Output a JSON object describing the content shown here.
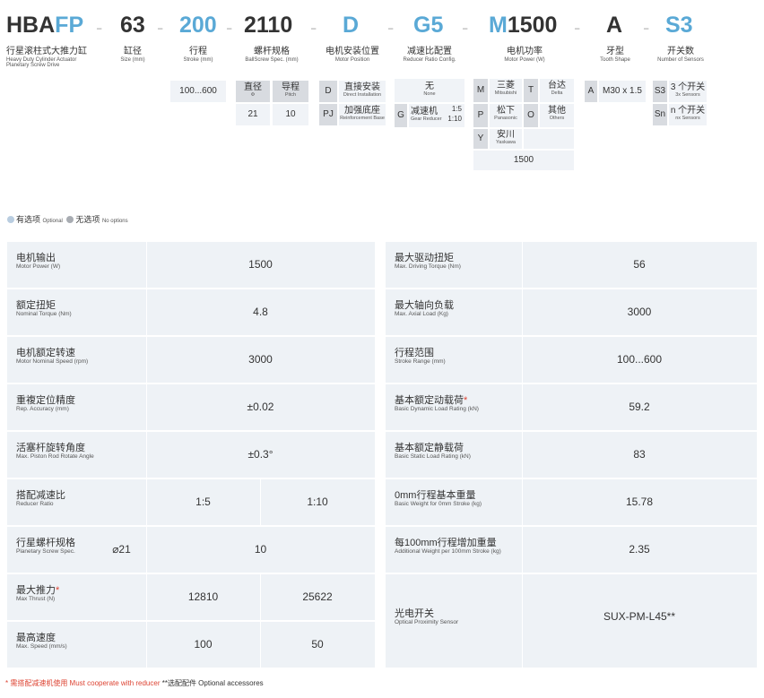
{
  "header": {
    "codes": [
      {
        "plain": "HBA",
        "colored": "FP",
        "zh": "行星滚柱式大推力缸",
        "en1": "Heavy Duty Cylinder Actuator",
        "en2": "Planetary Screw Drive"
      },
      {
        "plain": "63",
        "colored": "",
        "zh": "缸径",
        "en1": "Size (mm)"
      },
      {
        "plain": "",
        "colored": "200",
        "zh": "行程",
        "en1": "Stroke (mm)"
      },
      {
        "plain": "2110",
        "colored": "",
        "zh": "螺杆规格",
        "en1": "BallScrew Spec. (mm)"
      },
      {
        "plain": "",
        "colored": "D",
        "zh": "电机安装位置",
        "en1": "Motor Position"
      },
      {
        "plain": "",
        "colored": "G5",
        "zh": "减速比配置",
        "en1": "Reducer Ratio Config."
      },
      {
        "plain": "1500",
        "colored": "M",
        "zh": "电机功率",
        "en1": "Motor Power (W)"
      },
      {
        "plain": "A",
        "colored": "",
        "zh": "牙型",
        "en1": "Tooth Shape"
      },
      {
        "plain": "",
        "colored": "S3",
        "zh": "开关数",
        "en1": "Number of Sensors"
      }
    ],
    "dash": "-"
  },
  "options": {
    "stroke": "100...600",
    "screw": {
      "h1": "直径",
      "h1s": "Φ",
      "h2": "导程",
      "h2s": "Pitch",
      "v1": "21",
      "v2": "10"
    },
    "position": [
      {
        "code": "D",
        "zh": "直接安装",
        "en": "Direct Installation"
      },
      {
        "code": "PJ",
        "zh": "加强底座",
        "en": "Reinforcement Base"
      }
    ],
    "reducer": {
      "none_zh": "无",
      "none_en": "None",
      "code": "G",
      "zh": "减速机",
      "en": "Gear Reducer",
      "r1": "1:5",
      "r2": "1:10"
    },
    "motor": [
      {
        "code": "M",
        "zh": "三菱",
        "en": "Mitsubishi"
      },
      {
        "code": "P",
        "zh": "松下",
        "en": "Panasonic"
      },
      {
        "code": "Y",
        "zh": "安川",
        "en": "Yaskawa"
      },
      {
        "code": "T",
        "zh": "台达",
        "en": "Delta"
      },
      {
        "code": "O",
        "zh": "其他",
        "en": "Others"
      }
    ],
    "motor_power": "1500",
    "thread": {
      "code": "A",
      "val": "M30 x 1.5"
    },
    "sensors": [
      {
        "code": "S3",
        "zh": "3 个开关",
        "en": "3x Sensors"
      },
      {
        "code": "Sn",
        "zh": "n 个开关",
        "en": "nx Sensors"
      }
    ]
  },
  "legend": {
    "opt_zh": "有选项",
    "opt_en": "Optional",
    "no_zh": "无选项",
    "no_en": "No options"
  },
  "left_table": [
    {
      "zh": "电机输出",
      "en": "Motor Power (W)",
      "v": [
        "1500"
      ]
    },
    {
      "zh": "额定扭矩",
      "en": "Nominal Torque (Nm)",
      "v": [
        "4.8"
      ]
    },
    {
      "zh": "电机额定转速",
      "en": "Motor Nominal Speed (rpm)",
      "v": [
        "3000"
      ]
    },
    {
      "zh": "重複定位精度",
      "en": "Rep. Accuracy (mm)",
      "v": [
        "±0.02"
      ]
    },
    {
      "zh": "活塞杆旋转角度",
      "en": "Max. Piston Rod Rotate Angle",
      "v": [
        "±0.3°"
      ]
    },
    {
      "zh": "搭配减速比",
      "en": "Reducer Ratio",
      "v": [
        "1:5",
        "1:10"
      ]
    },
    {
      "zh": "行星螺杆规格",
      "en": "Planetary Screw Spec.",
      "pre": "⌀21",
      "v": [
        "10"
      ]
    },
    {
      "zh": "最大推力",
      "star": "*",
      "en": "Max Thrust (N)",
      "v": [
        "12810",
        "25622"
      ]
    },
    {
      "zh": "最高速度",
      "en": "Max. Speed (mm/s)",
      "v": [
        "100",
        "50"
      ]
    }
  ],
  "right_table": [
    {
      "zh": "最大驱动扭矩",
      "en": "Max. Driving Torque (Nm)",
      "v": "56"
    },
    {
      "zh": "最大轴向负载",
      "en": "Max. Axial Load (Kg)",
      "v": "3000"
    },
    {
      "zh": "行程范围",
      "en": "Stroke Range (mm)",
      "v": "100...600"
    },
    {
      "zh": "基本额定动载荷",
      "star": "*",
      "en": "Basic Dynamic Load Rating (kN)",
      "v": "59.2"
    },
    {
      "zh": "基本额定静载荷",
      "en": "Basic Static Load Rating (kN)",
      "v": "83"
    },
    {
      "zh": "0mm行程基本重量",
      "en": "Basic Weight for 0mm Stroke (kg)",
      "v": "15.78"
    },
    {
      "zh": "每100mm行程增加重量",
      "en": "Additional Weight per 100mm Stroke (kg)",
      "v": "2.35"
    },
    {
      "zh": "光电开关",
      "en": "Optical Proximity Sensor",
      "v": "SUX-PM-L45**"
    }
  ],
  "footer": {
    "star_note": "* 需搭配减速机使用 Must cooperate with reducer",
    "opt_note": "**选配配件 Optional accessores"
  },
  "colors": {
    "accent": "#5aa9d6",
    "row_bg": "#eef2f6",
    "red": "#d43"
  }
}
